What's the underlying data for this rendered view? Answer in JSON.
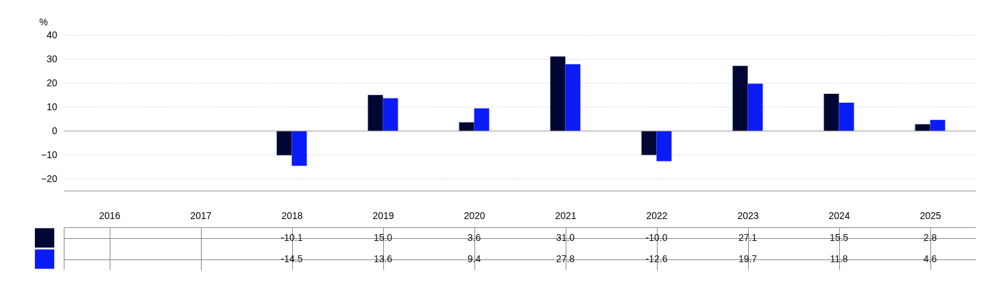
{
  "chart_data": {
    "type": "bar",
    "ylabel": "%",
    "categories": [
      "2016",
      "2017",
      "2018",
      "2019",
      "2020",
      "2021",
      "2022",
      "2023",
      "2024",
      "2025"
    ],
    "series": [
      {
        "color": "#000733",
        "values": [
          null,
          null,
          -10.1,
          15.0,
          3.6,
          31.0,
          -10.0,
          27.1,
          15.5,
          2.8
        ],
        "value_labels": [
          null,
          null,
          "-10.1",
          "15.0",
          "3.6",
          "31.0",
          "-10.0",
          "27.1",
          "15.5",
          "2.8"
        ]
      },
      {
        "color": "#0a1cf5",
        "values": [
          null,
          null,
          -14.5,
          13.6,
          9.4,
          27.8,
          -12.6,
          19.7,
          11.8,
          4.6
        ],
        "value_labels": [
          null,
          null,
          "-14.5",
          "13.6",
          "9.4",
          "27.8",
          "-12.6",
          "19.7",
          "11.8",
          "4.6"
        ]
      }
    ],
    "ylim": [
      -25,
      40
    ],
    "yticks": [
      -20,
      -10,
      0,
      10,
      20,
      30,
      40
    ],
    "grid": "y",
    "legend": false
  }
}
